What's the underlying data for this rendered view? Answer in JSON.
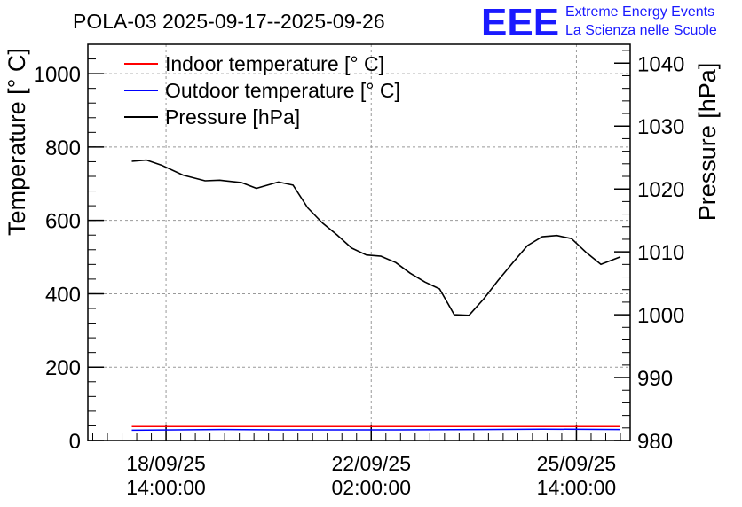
{
  "chart_data": {
    "type": "line",
    "title": "POLA-03 2025-09-17--2025-09-26",
    "logo": {
      "text": "EEE",
      "line1": "Extreme Energy Events",
      "line2": "La Scienza nelle Scuole",
      "color": "#1a1aff"
    },
    "ylabel": "Temperature [° C]",
    "y2label": "Pressure [hPa]",
    "ylim": [
      0,
      1080
    ],
    "y2lim": [
      980,
      1043
    ],
    "yticks": [
      "0",
      "200",
      "400",
      "600",
      "800",
      "1000"
    ],
    "y2ticks": [
      "980",
      "990",
      "1000",
      "1010",
      "1020",
      "1030",
      "1040"
    ],
    "xlim": [
      "2025-09-17T06:00",
      "2025-09-26T12:00"
    ],
    "xticks": [
      {
        "x": "2025-09-18T14:00",
        "line1": "18/09/25",
        "line2": "14:00:00"
      },
      {
        "x": "2025-09-22T02:00",
        "line1": "22/09/25",
        "line2": "02:00:00"
      },
      {
        "x": "2025-09-25T14:00",
        "line1": "25/09/25",
        "line2": "14:00:00"
      }
    ],
    "grid": true,
    "legend": {
      "placement": "top-left"
    },
    "series": [
      {
        "name": "Indoor temperature [° C]",
        "color": "#ff0000",
        "axis": "left",
        "x": [
          "2025-09-18T00:00",
          "2025-09-26T08:00"
        ],
        "values": [
          38,
          38
        ]
      },
      {
        "name": "Outdoor temperature [° C]",
        "color": "#0000ff",
        "axis": "left",
        "x": [
          "2025-09-18T00:00",
          "2025-09-19T12:00",
          "2025-09-20T12:00",
          "2025-09-22T12:00",
          "2025-09-24T00:00",
          "2025-09-25T00:00",
          "2025-09-26T08:00"
        ],
        "values": [
          28,
          30,
          29,
          29,
          30,
          31,
          30
        ]
      },
      {
        "name": "Pressure [hPa]",
        "color": "#000000",
        "axis": "right",
        "x": [
          "2025-09-18T00:00",
          "2025-09-18T06:00",
          "2025-09-18T12:00",
          "2025-09-18T21:00",
          "2025-09-19T06:00",
          "2025-09-19T12:00",
          "2025-09-19T21:00",
          "2025-09-20T03:00",
          "2025-09-20T12:00",
          "2025-09-20T18:00",
          "2025-09-21T00:00",
          "2025-09-21T06:00",
          "2025-09-21T12:00",
          "2025-09-21T18:00",
          "2025-09-22T00:00",
          "2025-09-22T06:00",
          "2025-09-22T12:00",
          "2025-09-22T18:00",
          "2025-09-23T00:00",
          "2025-09-23T06:00",
          "2025-09-23T12:00",
          "2025-09-23T18:00",
          "2025-09-24T00:00",
          "2025-09-24T06:00",
          "2025-09-24T12:00",
          "2025-09-24T18:00",
          "2025-09-25T00:00",
          "2025-09-25T06:00",
          "2025-09-25T12:00",
          "2025-09-25T18:00",
          "2025-09-26T00:00",
          "2025-09-26T08:00"
        ],
        "values": [
          1024.4,
          1024.6,
          1023.8,
          1022.2,
          1021.3,
          1021.4,
          1021.0,
          1020.1,
          1021.1,
          1020.6,
          1017.0,
          1014.6,
          1012.7,
          1010.6,
          1009.5,
          1009.3,
          1008.3,
          1006.6,
          1005.2,
          1004.1,
          1000.0,
          999.9,
          1002.5,
          1005.5,
          1008.3,
          1011.0,
          1012.4,
          1012.6,
          1012.1,
          1009.9,
          1008.0,
          1009.2
        ]
      }
    ]
  }
}
